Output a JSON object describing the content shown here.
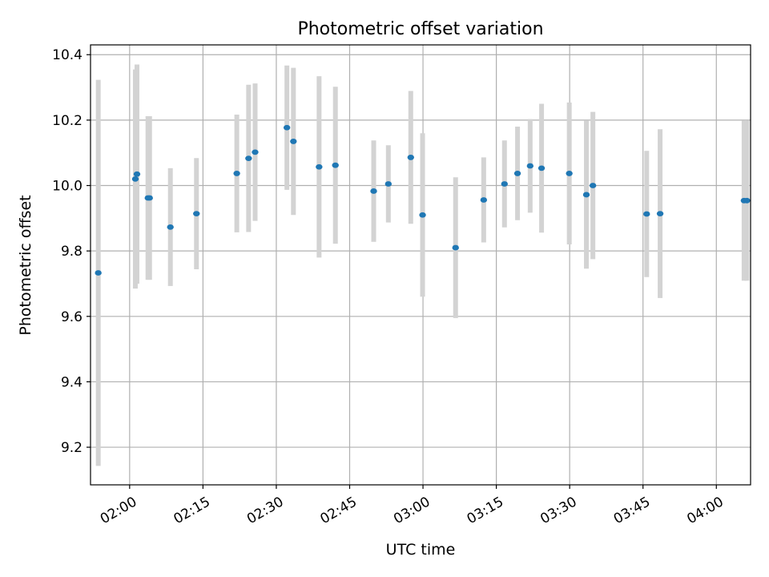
{
  "chart_data": {
    "type": "scatter",
    "title": "Photometric offset variation",
    "xlabel": "UTC time",
    "ylabel": "Photometric offset",
    "grid": true,
    "xlim": [
      "01:52",
      "04:07"
    ],
    "ylim": [
      9.085,
      10.43
    ],
    "x_ticks": [
      "02:00",
      "02:15",
      "02:30",
      "02:45",
      "03:00",
      "03:15",
      "03:30",
      "03:45",
      "04:00"
    ],
    "y_ticks": [
      9.2,
      9.4,
      9.6,
      9.8,
      10.0,
      10.2,
      10.4
    ],
    "y_tick_labels": [
      "9.2",
      "9.4",
      "9.6",
      "9.8",
      "10.0",
      "10.2",
      "10.4"
    ],
    "colors": {
      "points": "#1f77b4",
      "errorbars": "#d3d3d3",
      "grid": "#b0b0b0"
    },
    "series": [
      {
        "points": [
          {
            "time": "01:53:35",
            "y": 9.733,
            "yerr": 0.59
          },
          {
            "time": "02:01:10",
            "y": 10.02,
            "yerr": 0.335
          },
          {
            "time": "02:01:30",
            "y": 10.035,
            "yerr": 0.335
          },
          {
            "time": "02:03:45",
            "y": 9.962,
            "yerr": 0.25
          },
          {
            "time": "02:04:05",
            "y": 9.962,
            "yerr": 0.25
          },
          {
            "time": "02:08:20",
            "y": 9.873,
            "yerr": 0.18
          },
          {
            "time": "02:13:40",
            "y": 9.914,
            "yerr": 0.17
          },
          {
            "time": "02:21:55",
            "y": 10.037,
            "yerr": 0.18
          },
          {
            "time": "02:24:20",
            "y": 10.083,
            "yerr": 0.225
          },
          {
            "time": "02:25:40",
            "y": 10.102,
            "yerr": 0.21
          },
          {
            "time": "02:32:10",
            "y": 10.177,
            "yerr": 0.19
          },
          {
            "time": "02:33:30",
            "y": 10.135,
            "yerr": 0.225
          },
          {
            "time": "02:38:45",
            "y": 10.057,
            "yerr": 0.277
          },
          {
            "time": "02:42:05",
            "y": 10.062,
            "yerr": 0.24
          },
          {
            "time": "02:49:55",
            "y": 9.983,
            "yerr": 0.155
          },
          {
            "time": "02:52:55",
            "y": 10.005,
            "yerr": 0.118
          },
          {
            "time": "02:57:30",
            "y": 10.086,
            "yerr": 0.203
          },
          {
            "time": "02:59:55",
            "y": 9.91,
            "yerr": 0.25
          },
          {
            "time": "03:06:40",
            "y": 9.81,
            "yerr": 0.215
          },
          {
            "time": "03:12:25",
            "y": 9.956,
            "yerr": 0.13
          },
          {
            "time": "03:16:40",
            "y": 10.005,
            "yerr": 0.133
          },
          {
            "time": "03:19:20",
            "y": 10.037,
            "yerr": 0.143
          },
          {
            "time": "03:21:55",
            "y": 10.06,
            "yerr": 0.143
          },
          {
            "time": "03:24:15",
            "y": 10.053,
            "yerr": 0.197
          },
          {
            "time": "03:29:55",
            "y": 10.037,
            "yerr": 0.217
          },
          {
            "time": "03:33:25",
            "y": 9.972,
            "yerr": 0.226
          },
          {
            "time": "03:34:45",
            "y": 10.0,
            "yerr": 0.225
          },
          {
            "time": "03:45:45",
            "y": 9.913,
            "yerr": 0.193
          },
          {
            "time": "03:48:30",
            "y": 9.914,
            "yerr": 0.258
          },
          {
            "time": "04:05:40",
            "y": 9.954,
            "yerr": 0.245
          },
          {
            "time": "04:06:15",
            "y": 9.954,
            "yerr": 0.245
          }
        ]
      }
    ]
  }
}
